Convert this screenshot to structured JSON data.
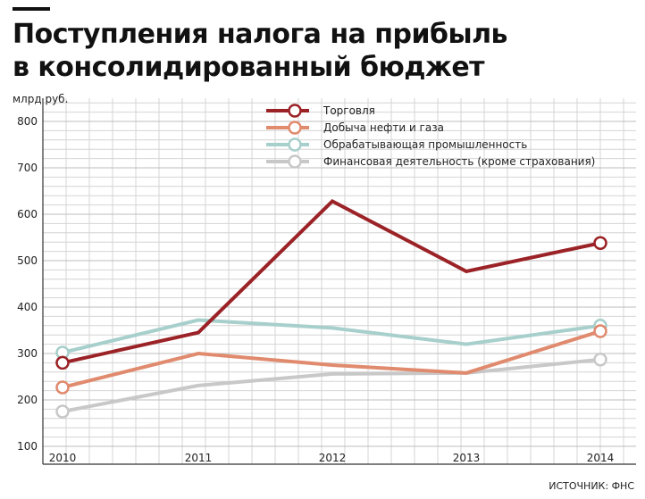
{
  "title_line1": "Поступления налога на прибыль",
  "title_line2": "в консолидированный бюджет",
  "source": "ИСТОЧНИК: ФНС",
  "chart_data": {
    "type": "line",
    "unit_label": "млрд руб.",
    "x": [
      "2010",
      "2011",
      "2012",
      "2013",
      "2014"
    ],
    "yticks": [
      "800",
      "700",
      "600",
      "500",
      "400",
      "300",
      "200",
      "100"
    ],
    "ylim": [
      100,
      800
    ],
    "grid": true,
    "legend_position": "top-right",
    "series": [
      {
        "name": "Торговля",
        "color": "#9b2226",
        "values": [
          280,
          345,
          628,
          477,
          538
        ]
      },
      {
        "name": "Добыча нефти и газа",
        "color": "#e08a6e",
        "values": [
          227,
          300,
          275,
          258,
          348
        ]
      },
      {
        "name": "Обрабатывающая промышленность",
        "color": "#a7cfcb",
        "values": [
          302,
          372,
          355,
          320,
          360
        ]
      },
      {
        "name": "Финансовая деятельность (кроме страхования)",
        "color": "#c8c8c8",
        "values": [
          175,
          231,
          256,
          258,
          287
        ]
      }
    ]
  }
}
